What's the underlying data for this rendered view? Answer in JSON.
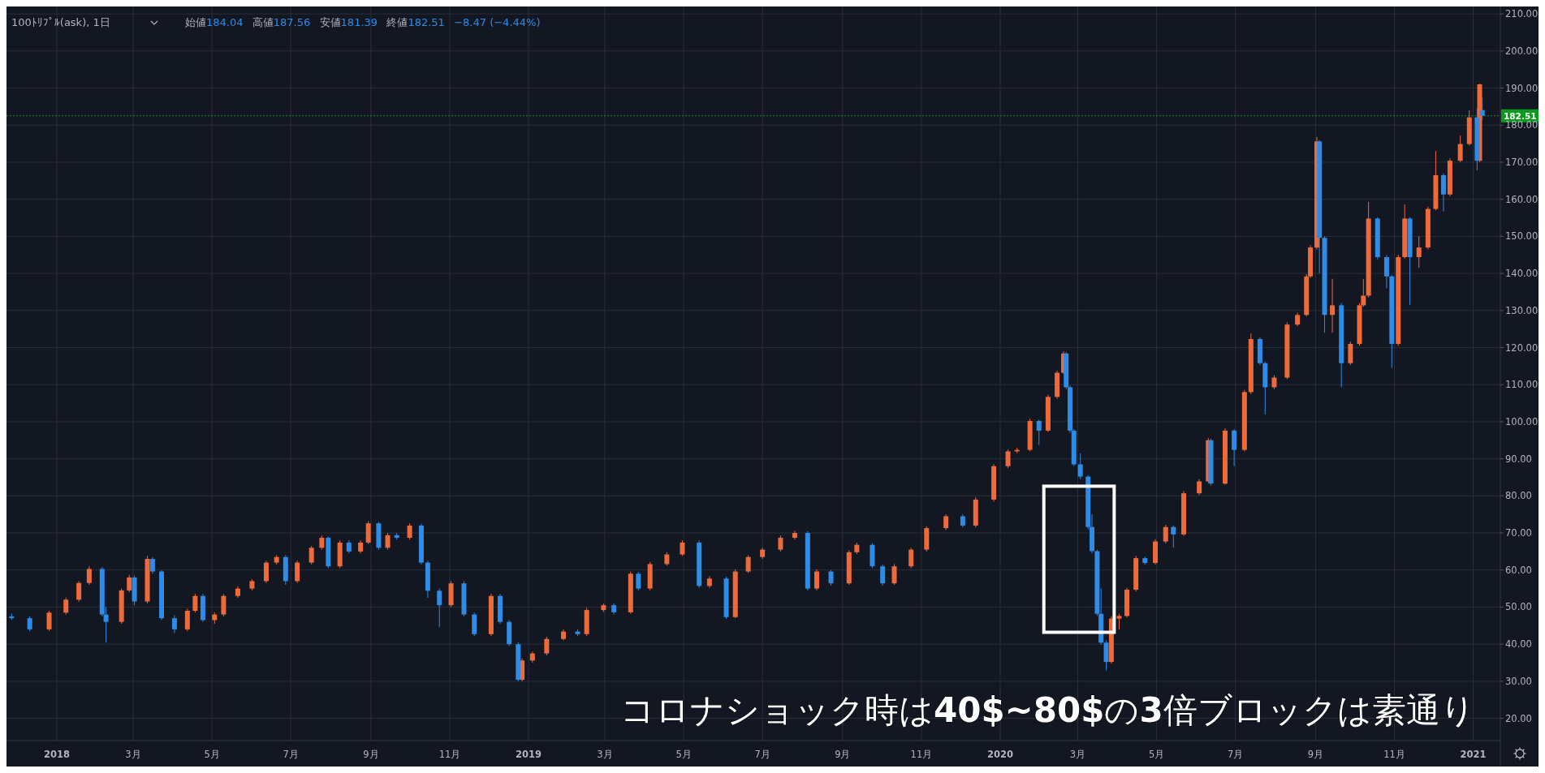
{
  "chart_data": {
    "type": "candlestick",
    "title": "100ﾄﾘﾌﾟﾙ(ask), 1日",
    "annotations": [
      "始値184.04",
      "高値187.56",
      "安値181.39",
      "終値182.51",
      "−8.47 (−4.44%)",
      "コロナショック時は40$~80$の3倍ブロックは素通り"
    ],
    "xlim": [
      "2017-11-23",
      "2021-01-22"
    ],
    "xticks": [
      {
        "value": "2018-01-01",
        "label": "2018"
      },
      {
        "value": "2018-03-01",
        "label": "3月"
      },
      {
        "value": "2018-05-01",
        "label": "5月"
      },
      {
        "value": "2018-07-01",
        "label": "7月"
      },
      {
        "value": "2018-09-01",
        "label": "9月"
      },
      {
        "value": "2018-11-01",
        "label": "11月"
      },
      {
        "value": "2019-01-01",
        "label": "2019"
      },
      {
        "value": "2019-03-01",
        "label": "3月"
      },
      {
        "value": "2019-05-01",
        "label": "5月"
      },
      {
        "value": "2019-07-01",
        "label": "7月"
      },
      {
        "value": "2019-09-01",
        "label": "9月"
      },
      {
        "value": "2019-11-01",
        "label": "11月"
      },
      {
        "value": "2020-01-01",
        "label": "2020"
      },
      {
        "value": "2020-03-01",
        "label": "3月"
      },
      {
        "value": "2020-05-01",
        "label": "5月"
      },
      {
        "value": "2020-07-01",
        "label": "7月"
      },
      {
        "value": "2020-09-01",
        "label": "9月"
      },
      {
        "value": "2020-11-01",
        "label": "11月"
      },
      {
        "value": "2021-01-01",
        "label": "2021"
      }
    ],
    "ylim": [
      14,
      212
    ],
    "yticks": [
      {
        "value": 20,
        "label": "20.00"
      },
      {
        "value": 30,
        "label": "30.00"
      },
      {
        "value": 40,
        "label": "40.00"
      },
      {
        "value": 50,
        "label": "50.00"
      },
      {
        "value": 60,
        "label": "60.00"
      },
      {
        "value": 70,
        "label": "70.00"
      },
      {
        "value": 80,
        "label": "80.00"
      },
      {
        "value": 90,
        "label": "90.00"
      },
      {
        "value": 100,
        "label": "100.00"
      },
      {
        "value": 110,
        "label": "110.00"
      },
      {
        "value": 120,
        "label": "120.00"
      },
      {
        "value": 130,
        "label": "130.00"
      },
      {
        "value": 140,
        "label": "140.00"
      },
      {
        "value": 150,
        "label": "150.00"
      },
      {
        "value": 160,
        "label": "160.00"
      },
      {
        "value": 170,
        "label": "170.00"
      },
      {
        "value": 180,
        "label": "180.00"
      },
      {
        "value": 190,
        "label": "190.00"
      },
      {
        "value": 200,
        "label": "200.00"
      },
      {
        "value": 210,
        "label": "210.00"
      }
    ],
    "grid": true,
    "ref_lines": [
      {
        "axis": "y",
        "value": 182.51,
        "label": "182.51",
        "color": "#0b9a1e",
        "line_style": "dotted"
      }
    ],
    "series": [
      {
        "color": "#ef6a3a",
        "x": [
          "2017-12-26",
          "2018-01-08",
          "2018-01-18",
          "2018-01-26",
          "2018-02-20",
          "2018-02-26",
          "2018-03-12",
          "2018-04-12",
          "2018-04-18",
          "2018-05-03",
          "2018-05-10",
          "2018-05-21",
          "2018-06-01",
          "2018-06-12",
          "2018-06-20",
          "2018-07-06",
          "2018-07-17",
          "2018-07-25",
          "2018-08-08",
          "2018-08-24",
          "2018-08-30",
          "2018-09-14",
          "2018-10-01",
          "2018-11-02",
          "2018-12-03",
          "2018-12-27",
          "2019-01-04",
          "2019-01-15",
          "2019-01-28",
          "2019-02-15",
          "2019-02-28",
          "2019-03-21",
          "2019-04-05",
          "2019-04-18",
          "2019-04-30",
          "2019-05-21",
          "2019-06-10",
          "2019-06-20",
          "2019-07-01",
          "2019-07-15",
          "2019-07-26",
          "2019-08-12",
          "2019-09-06",
          "2019-09-12",
          "2019-10-11",
          "2019-10-24",
          "2019-11-05",
          "2019-11-20",
          "2019-12-13",
          "2019-12-27",
          "2020-01-07",
          "2020-01-14",
          "2020-01-24",
          "2020-02-07",
          "2020-02-14",
          "2020-02-19",
          "2020-03-27",
          "2020-04-02",
          "2020-04-08",
          "2020-04-15",
          "2020-04-30",
          "2020-05-08",
          "2020-05-22",
          "2020-06-03",
          "2020-06-10",
          "2020-06-23",
          "2020-07-08",
          "2020-07-13",
          "2020-07-31",
          "2020-08-10",
          "2020-08-18",
          "2020-08-25",
          "2020-08-28",
          "2020-09-02",
          "2020-09-14",
          "2020-09-28",
          "2020-10-05",
          "2020-10-08",
          "2020-10-12",
          "2020-11-04",
          "2020-11-09",
          "2020-11-20",
          "2020-11-27",
          "2020-12-03",
          "2020-12-14",
          "2020-12-22",
          "2020-12-29",
          "2021-01-06"
        ],
        "ohlc": [
          [
            44,
            49,
            43.6,
            48.5
          ],
          [
            48.5,
            52.6,
            48,
            52
          ],
          [
            52,
            57,
            51.5,
            56.5
          ],
          [
            56.5,
            61,
            56,
            60.3
          ],
          [
            46,
            55,
            45.5,
            54.5
          ],
          [
            54.5,
            58.7,
            54,
            58
          ],
          [
            51.5,
            63.8,
            51,
            63
          ],
          [
            44,
            49.6,
            43.5,
            49
          ],
          [
            49,
            53.6,
            48.5,
            53
          ],
          [
            46.5,
            48.6,
            45.5,
            48
          ],
          [
            48,
            53.5,
            47.5,
            53
          ],
          [
            53,
            55.6,
            52.5,
            55
          ],
          [
            55,
            57.5,
            54.5,
            57
          ],
          [
            57,
            62.5,
            56.5,
            62
          ],
          [
            62,
            64,
            61.5,
            63.5
          ],
          [
            57,
            62.5,
            56.5,
            62
          ],
          [
            62,
            66.5,
            61.5,
            66
          ],
          [
            66,
            69.3,
            65.5,
            68.7
          ],
          [
            61,
            68,
            60.5,
            67.4
          ],
          [
            65,
            68,
            64.5,
            67.4
          ],
          [
            67.4,
            73.2,
            67,
            72.6
          ],
          [
            66,
            70,
            65.5,
            69.4
          ],
          [
            68.7,
            72.6,
            68.2,
            72
          ],
          [
            50.5,
            57,
            50,
            56.4
          ],
          [
            42.7,
            53.6,
            42.2,
            53
          ],
          [
            30.4,
            36.2,
            30,
            35.6
          ],
          [
            35.6,
            38,
            35,
            37.5
          ],
          [
            37.5,
            42,
            37,
            41.4
          ],
          [
            41.4,
            44,
            41,
            43.4
          ],
          [
            42.7,
            49.8,
            42.2,
            49.2
          ],
          [
            49.2,
            51,
            48.7,
            50.5
          ],
          [
            48.6,
            59.6,
            48.2,
            59
          ],
          [
            55,
            62.2,
            54.5,
            61.6
          ],
          [
            61.6,
            64.8,
            61.2,
            64.2
          ],
          [
            64.2,
            68,
            63.8,
            67.4
          ],
          [
            55.7,
            58.3,
            55.2,
            57.7
          ],
          [
            47.3,
            60.2,
            47,
            59.6
          ],
          [
            59.6,
            64,
            59.2,
            63.5
          ],
          [
            63.5,
            66,
            63,
            65.5
          ],
          [
            65.5,
            69.3,
            65,
            68.7
          ],
          [
            68.7,
            70.6,
            68.2,
            70
          ],
          [
            55,
            60.2,
            54.5,
            59.6
          ],
          [
            56.4,
            65.3,
            56,
            64.8
          ],
          [
            64.8,
            67.4,
            64.3,
            66.8
          ],
          [
            56.4,
            61.6,
            56,
            61
          ],
          [
            61,
            66,
            60.5,
            65.5
          ],
          [
            65.5,
            71.8,
            65,
            71.3
          ],
          [
            71.3,
            75,
            70.8,
            74.5
          ],
          [
            72,
            79.6,
            71.5,
            79
          ],
          [
            79,
            88.5,
            78.5,
            88
          ],
          [
            88,
            92.5,
            87.5,
            92
          ],
          [
            92,
            93,
            91.5,
            92.4
          ],
          [
            92.4,
            100.8,
            92,
            100.2
          ],
          [
            97.6,
            107.3,
            97.2,
            106.7
          ],
          [
            106.7,
            113.8,
            106.2,
            113.2
          ],
          [
            113.2,
            119,
            112.8,
            118.4
          ],
          [
            35.2,
            47.5,
            34.8,
            46.9
          ],
          [
            46.9,
            48.2,
            44,
            47.6
          ],
          [
            47.6,
            55.2,
            47.2,
            54.7
          ],
          [
            54.7,
            63.8,
            54.2,
            63.2
          ],
          [
            61.9,
            68.3,
            61.5,
            67.7
          ],
          [
            67.7,
            72.2,
            67.2,
            71.6
          ],
          [
            69.6,
            81.3,
            69.2,
            80.7
          ],
          [
            80.7,
            84.5,
            80.2,
            83.9
          ],
          [
            83.9,
            95.6,
            83.5,
            95
          ],
          [
            83.3,
            98.2,
            83,
            97.6
          ],
          [
            92.4,
            108.6,
            92,
            108
          ],
          [
            108,
            123.8,
            107.5,
            122.3
          ],
          [
            109.3,
            112.5,
            108.8,
            111.9
          ],
          [
            111.9,
            126.8,
            111.5,
            126.2
          ],
          [
            126.2,
            129.4,
            125.8,
            128.8
          ],
          [
            128.8,
            139.8,
            128.4,
            139.2
          ],
          [
            139.2,
            147.6,
            138.8,
            147
          ],
          [
            147,
            176.8,
            146.5,
            175.6
          ],
          [
            128.8,
            138.5,
            124,
            131.4
          ],
          [
            115.8,
            121.6,
            115.3,
            121
          ],
          [
            121,
            132,
            120.5,
            131.4
          ],
          [
            131.4,
            138.5,
            131,
            134
          ],
          [
            134,
            159.3,
            133.5,
            154.8
          ],
          [
            121,
            145,
            120.5,
            144.4
          ],
          [
            144.4,
            158.6,
            144,
            154.8
          ],
          [
            144.4,
            150,
            141.5,
            147
          ],
          [
            147,
            158,
            146.5,
            157.4
          ],
          [
            157.4,
            173,
            157,
            166.5
          ],
          [
            161.3,
            171,
            160.8,
            170.4
          ],
          [
            170.4,
            177.2,
            170,
            174.9
          ],
          [
            174.9,
            184,
            174.5,
            182.1
          ],
          [
            170.4,
            191.2,
            170,
            191
          ]
        ]
      },
      {
        "color": "#2e8be6",
        "x": [
          "2017-11-27",
          "2017-12-11",
          "2018-02-05",
          "2018-02-08",
          "2018-03-02",
          "2018-03-16",
          "2018-03-23",
          "2018-04-02",
          "2018-04-24",
          "2018-06-27",
          "2018-07-30",
          "2018-08-15",
          "2018-09-07",
          "2018-09-21",
          "2018-10-10",
          "2018-10-15",
          "2018-10-24",
          "2018-11-12",
          "2018-11-20",
          "2018-12-10",
          "2018-12-17",
          "2018-12-24",
          "2019-02-08",
          "2019-03-08",
          "2019-03-27",
          "2019-05-13",
          "2019-06-03",
          "2019-08-05",
          "2019-08-23",
          "2019-09-24",
          "2019-10-02",
          "2019-12-03",
          "2020-01-31",
          "2020-02-21",
          "2020-02-24",
          "2020-02-27",
          "2020-03-03",
          "2020-03-09",
          "2020-03-12",
          "2020-03-16",
          "2020-03-19",
          "2020-03-23",
          "2020-04-22",
          "2020-05-14",
          "2020-06-12",
          "2020-06-30",
          "2020-07-20",
          "2020-07-24",
          "2020-09-04",
          "2020-09-08",
          "2020-09-21",
          "2020-10-19",
          "2020-10-26",
          "2020-10-30",
          "2020-11-13",
          "2020-12-09",
          "2021-01-04",
          "2021-01-08"
        ],
        "ohlc": [
          [
            47.5,
            48.3,
            46.5,
            47
          ],
          [
            47,
            47.5,
            43.5,
            44
          ],
          [
            60.3,
            60.8,
            47.5,
            48
          ],
          [
            48,
            50,
            40.4,
            46
          ],
          [
            58,
            58.5,
            50.5,
            51.5
          ],
          [
            63,
            63.5,
            59,
            59.6
          ],
          [
            59.6,
            60,
            46.5,
            47
          ],
          [
            47,
            47.8,
            43,
            44
          ],
          [
            53,
            53.5,
            46,
            46.5
          ],
          [
            63.5,
            64,
            56,
            57
          ],
          [
            68.7,
            69,
            60.5,
            61
          ],
          [
            67.4,
            68,
            64.5,
            65
          ],
          [
            72.6,
            73,
            65.5,
            66
          ],
          [
            69.4,
            70,
            68.2,
            68.7
          ],
          [
            72,
            72.5,
            61.5,
            62
          ],
          [
            62,
            62.5,
            52.5,
            54.4
          ],
          [
            54.4,
            55,
            44.7,
            50.5
          ],
          [
            56.4,
            57,
            47.5,
            48
          ],
          [
            48,
            48.5,
            42.2,
            42.7
          ],
          [
            53,
            53.5,
            45.5,
            46
          ],
          [
            46,
            46.5,
            39.5,
            40
          ],
          [
            40,
            40.5,
            30,
            30.4
          ],
          [
            43.4,
            44,
            42.2,
            42.7
          ],
          [
            50.5,
            51,
            48,
            48.6
          ],
          [
            59,
            59.5,
            54.5,
            55
          ],
          [
            67.4,
            68,
            55.2,
            55.7
          ],
          [
            57.7,
            58.2,
            46.8,
            47.3
          ],
          [
            70,
            70.5,
            54.5,
            55
          ],
          [
            59.6,
            60,
            55.8,
            56.4
          ],
          [
            66.8,
            67.2,
            60.5,
            61
          ],
          [
            61,
            61.5,
            55.8,
            56.4
          ],
          [
            74.5,
            75,
            71.5,
            72
          ],
          [
            100.2,
            100.6,
            93.7,
            97.6
          ],
          [
            118.4,
            118.8,
            108.8,
            109.3
          ],
          [
            109.3,
            109.8,
            97,
            97.6
          ],
          [
            97.6,
            98,
            88,
            88.5
          ],
          [
            88.5,
            91.5,
            84.5,
            85.2
          ],
          [
            85.2,
            85.6,
            71,
            71.6
          ],
          [
            71.6,
            75,
            64.5,
            65.1
          ],
          [
            65.1,
            65.5,
            47.6,
            48.2
          ],
          [
            48.2,
            55,
            39.8,
            40.4
          ],
          [
            40.4,
            41,
            32.9,
            35.2
          ],
          [
            63.2,
            63.6,
            61.4,
            61.9
          ],
          [
            71.6,
            72,
            66,
            69.6
          ],
          [
            95,
            95.4,
            82.8,
            83.3
          ],
          [
            97.6,
            98,
            88,
            92.4
          ],
          [
            122.3,
            122.8,
            115.3,
            115.8
          ],
          [
            115.8,
            116.2,
            102,
            109.3
          ],
          [
            175.6,
            176,
            140,
            149.6
          ],
          [
            149.6,
            150,
            124,
            128.8
          ],
          [
            131.4,
            132,
            109.3,
            115.8
          ],
          [
            154.8,
            155.2,
            143.8,
            144.4
          ],
          [
            144.4,
            145,
            136,
            139.2
          ],
          [
            139.2,
            139.6,
            114.5,
            121
          ],
          [
            154.8,
            155.2,
            131.5,
            144.4
          ],
          [
            166.5,
            167,
            156.7,
            161.3
          ],
          [
            182.1,
            184.5,
            167.8,
            170.4
          ],
          [
            184.04,
            187.56,
            181.39,
            182.51
          ]
        ]
      }
    ]
  }
}
